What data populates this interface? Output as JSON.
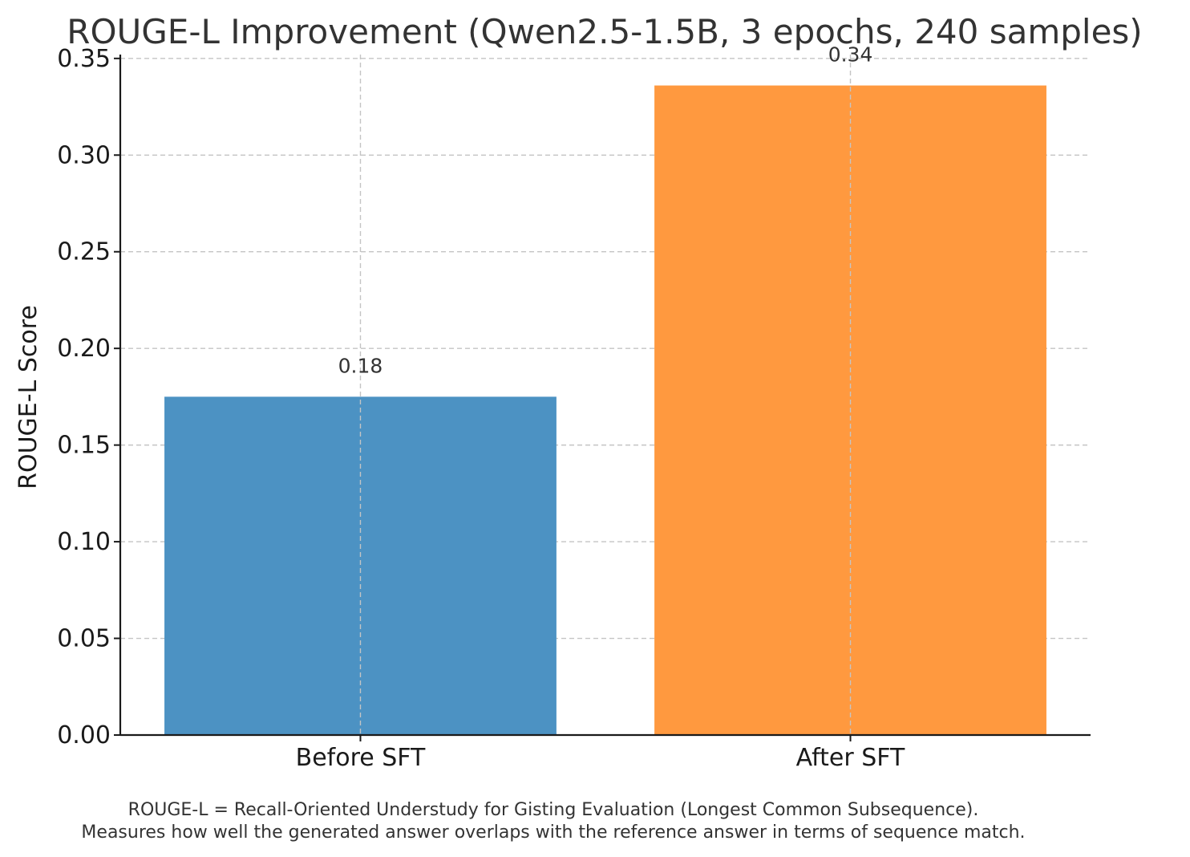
{
  "chart_data": {
    "type": "bar",
    "title": "ROUGE-L Improvement (Qwen2.5-1.5B, 3 epochs, 240 samples)",
    "xlabel": "",
    "ylabel": "ROUGE-L Score",
    "categories": [
      "Before SFT",
      "After SFT"
    ],
    "values": [
      0.175,
      0.336
    ],
    "data_labels": [
      "0.18",
      "0.34"
    ],
    "colors": [
      "#4c92c3",
      "#ff993f"
    ],
    "ylim": [
      0,
      0.352
    ],
    "yticks": [
      0.0,
      0.05,
      0.1,
      0.15,
      0.2,
      0.25,
      0.3,
      0.35
    ],
    "ytick_labels": [
      "0.00",
      "0.05",
      "0.10",
      "0.15",
      "0.20",
      "0.25",
      "0.30",
      "0.35"
    ],
    "grid": true,
    "legend": "none"
  },
  "caption": {
    "line1": "ROUGE-L = Recall-Oriented Understudy for Gisting Evaluation (Longest Common Subsequence).",
    "line2": "Measures how well the generated answer overlaps with the reference answer in terms of sequence match."
  }
}
